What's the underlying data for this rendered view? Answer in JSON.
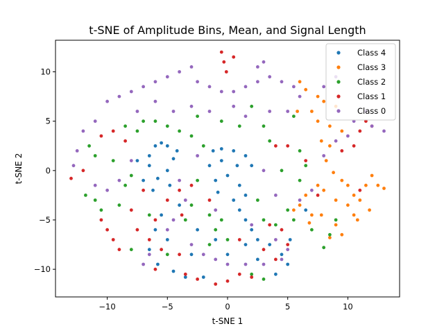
{
  "chart_data": {
    "type": "scatter",
    "title": "t-SNE of Amplitude Bins, Mean, and Signal Length",
    "xlabel": "t-SNE 1",
    "ylabel": "t-SNE 2",
    "xlim": [
      -14.3,
      14.3
    ],
    "ylim": [
      -12.8,
      13.2
    ],
    "xticks": [
      -10,
      -5,
      0,
      5,
      10
    ],
    "yticks": [
      -10,
      -5,
      0,
      5,
      10
    ],
    "xtick_labels": [
      "−10",
      "−5",
      "0",
      "5",
      "10"
    ],
    "ytick_labels": [
      "−10",
      "−5",
      "0",
      "5",
      "10"
    ],
    "grid": false,
    "legend_position": "top-right",
    "series": [
      {
        "name": "Class 4",
        "color": "#1f77b4",
        "points": [
          [
            -6.5,
            1.5
          ],
          [
            -6.0,
            2.5
          ],
          [
            -5.5,
            2.8
          ],
          [
            -5.0,
            2.5
          ],
          [
            -4.5,
            1.2
          ],
          [
            -5.0,
            0.0
          ],
          [
            -5.8,
            -0.8
          ],
          [
            -6.5,
            0.5
          ],
          [
            -4.2,
            2.0
          ],
          [
            -6.2,
            -2.0
          ],
          [
            -4.8,
            -1.5
          ],
          [
            -5.5,
            -4.5
          ],
          [
            -6.0,
            -6.0
          ],
          [
            -5.0,
            -7.0
          ],
          [
            -6.5,
            -8.0
          ],
          [
            -5.8,
            -9.5
          ],
          [
            -4.5,
            -10.2
          ],
          [
            -3.5,
            -10.8
          ],
          [
            -2.0,
            -10.8
          ],
          [
            -1.2,
            2.0
          ],
          [
            -0.5,
            2.2
          ],
          [
            0.5,
            2.0
          ],
          [
            1.5,
            1.5
          ],
          [
            2.0,
            0.5
          ],
          [
            -1.5,
            0.5
          ],
          [
            -1.0,
            -1.0
          ],
          [
            0.0,
            -0.5
          ],
          [
            1.0,
            -1.5
          ],
          [
            1.5,
            -2.5
          ],
          [
            -0.8,
            -2.2
          ],
          [
            0.5,
            -3.0
          ],
          [
            1.0,
            -4.0
          ],
          [
            1.5,
            -5.0
          ],
          [
            2.0,
            -6.0
          ],
          [
            2.5,
            -7.0
          ],
          [
            1.5,
            -7.5
          ],
          [
            -0.5,
            1.0
          ],
          [
            0.8,
            0.5
          ],
          [
            3.5,
            -7.5
          ],
          [
            4.5,
            -8.5
          ],
          [
            5.0,
            -9.5
          ],
          [
            5.2,
            -7.0
          ],
          [
            4.0,
            -10.5
          ],
          [
            -7.5,
            1.0
          ],
          [
            -7.0,
            -1.0
          ],
          [
            -2.5,
            -6.0
          ],
          [
            -3.0,
            -8.5
          ],
          [
            -1.0,
            -7.0
          ],
          [
            0.0,
            -8.5
          ],
          [
            2.5,
            -9.0
          ],
          [
            6.5,
            -4.0
          ],
          [
            -4.0,
            -3.5
          ]
        ]
      },
      {
        "name": "Class 3",
        "color": "#ff7f0e",
        "points": [
          [
            7.0,
            6.0
          ],
          [
            8.0,
            7.0
          ],
          [
            9.0,
            6.5
          ],
          [
            7.5,
            5.0
          ],
          [
            8.5,
            4.5
          ],
          [
            9.5,
            4.0
          ],
          [
            7.8,
            3.0
          ],
          [
            8.2,
            1.0
          ],
          [
            8.8,
            -0.2
          ],
          [
            9.5,
            -1.0
          ],
          [
            8.0,
            -2.0
          ],
          [
            9.0,
            -3.0
          ],
          [
            10.0,
            -3.5
          ],
          [
            10.5,
            -4.5
          ],
          [
            11.0,
            -3.0
          ],
          [
            11.5,
            -1.5
          ],
          [
            12.0,
            -0.5
          ],
          [
            12.5,
            -1.5
          ],
          [
            13.0,
            -1.8
          ],
          [
            7.5,
            -1.5
          ],
          [
            6.5,
            -2.5
          ],
          [
            6.0,
            -3.5
          ],
          [
            5.5,
            -4.0
          ],
          [
            7.0,
            -4.5
          ],
          [
            6.8,
            -5.3
          ],
          [
            7.8,
            -4.5
          ],
          [
            9.5,
            -6.5
          ],
          [
            8.5,
            -6.8
          ],
          [
            7.5,
            7.5
          ],
          [
            6.5,
            8.2
          ],
          [
            6.0,
            9.0
          ],
          [
            10.0,
            -1.5
          ],
          [
            11.8,
            -4.0
          ],
          [
            10.8,
            -5.0
          ],
          [
            9.0,
            -5.5
          ],
          [
            5.8,
            6.0
          ],
          [
            8.5,
            2.5
          ],
          [
            10.5,
            -2.5
          ]
        ]
      },
      {
        "name": "Class 2",
        "color": "#2ca02c",
        "points": [
          [
            -11.5,
            2.5
          ],
          [
            -11.0,
            1.5
          ],
          [
            -11.8,
            -2.5
          ],
          [
            -11.0,
            -3.0
          ],
          [
            -10.5,
            -4.0
          ],
          [
            -9.0,
            -3.5
          ],
          [
            -8.5,
            -1.5
          ],
          [
            -8.0,
            -0.5
          ],
          [
            -7.5,
            4.0
          ],
          [
            -7.0,
            5.0
          ],
          [
            -6.0,
            5.0
          ],
          [
            -5.0,
            4.5
          ],
          [
            -4.0,
            4.0
          ],
          [
            -3.0,
            3.5
          ],
          [
            -2.0,
            2.5
          ],
          [
            -2.5,
            -1.0
          ],
          [
            -3.0,
            -3.5
          ],
          [
            -3.5,
            -5.0
          ],
          [
            -1.5,
            -4.5
          ],
          [
            -0.5,
            -5.0
          ],
          [
            -1.0,
            -6.0
          ],
          [
            0.0,
            -7.0
          ],
          [
            -1.5,
            -7.5
          ],
          [
            3.0,
            4.5
          ],
          [
            3.5,
            3.0
          ],
          [
            2.5,
            -3.0
          ],
          [
            3.0,
            -5.0
          ],
          [
            4.0,
            -5.5
          ],
          [
            5.0,
            -4.0
          ],
          [
            5.5,
            -5.0
          ],
          [
            6.0,
            -1.0
          ],
          [
            6.5,
            0.5
          ],
          [
            6.0,
            2.0
          ],
          [
            7.0,
            -6.0
          ],
          [
            8.0,
            -7.8
          ],
          [
            8.5,
            -6.5
          ],
          [
            9.0,
            -5.0
          ],
          [
            2.0,
            -10.5
          ],
          [
            3.0,
            -11.0
          ],
          [
            -5.0,
            -8.5
          ],
          [
            -8.5,
            4.5
          ],
          [
            -9.5,
            1.0
          ],
          [
            -2.5,
            5.5
          ],
          [
            -0.5,
            5.0
          ],
          [
            1.0,
            4.5
          ],
          [
            2.0,
            6.5
          ],
          [
            -6.5,
            -4.5
          ],
          [
            -8.0,
            -8.0
          ],
          [
            5.5,
            5.5
          ],
          [
            4.5,
            0.0
          ]
        ]
      },
      {
        "name": "Class 1",
        "color": "#d62728",
        "points": [
          [
            -0.5,
            12.0
          ],
          [
            -0.3,
            11.0
          ],
          [
            -0.1,
            10.0
          ],
          [
            0.5,
            11.5
          ],
          [
            -10.5,
            -5.0
          ],
          [
            -10.0,
            -6.0
          ],
          [
            -9.5,
            -7.0
          ],
          [
            -9.0,
            -8.0
          ],
          [
            -10.5,
            3.5
          ],
          [
            -9.5,
            4.0
          ],
          [
            -8.5,
            3.0
          ],
          [
            -3.0,
            -1.5
          ],
          [
            -4.0,
            -2.0
          ],
          [
            -5.0,
            -3.0
          ],
          [
            -6.0,
            -5.0
          ],
          [
            -6.5,
            -7.0
          ],
          [
            -5.5,
            -8.0
          ],
          [
            -4.0,
            -8.5
          ],
          [
            -3.5,
            -10.5
          ],
          [
            -2.5,
            -11.0
          ],
          [
            -1.0,
            -11.5
          ],
          [
            0.0,
            -11.2
          ],
          [
            1.0,
            -10.5
          ],
          [
            2.0,
            -10.8
          ],
          [
            3.5,
            -5.5
          ],
          [
            4.5,
            -6.0
          ],
          [
            5.0,
            -7.5
          ],
          [
            4.0,
            -9.0
          ],
          [
            3.0,
            -8.0
          ],
          [
            4.0,
            2.5
          ],
          [
            5.0,
            2.5
          ],
          [
            9.5,
            2.0
          ],
          [
            10.5,
            2.5
          ],
          [
            11.0,
            4.0
          ],
          [
            11.5,
            5.0
          ],
          [
            12.0,
            4.5
          ],
          [
            11.0,
            -2.0
          ],
          [
            6.5,
            1.0
          ],
          [
            -12.0,
            0.0
          ],
          [
            -13.0,
            -0.8
          ],
          [
            -7.0,
            -2.0
          ],
          [
            -7.5,
            -6.0
          ],
          [
            -6.0,
            -10.0
          ],
          [
            1.0,
            -7.0
          ],
          [
            -1.5,
            -3.0
          ],
          [
            7.5,
            -2.5
          ],
          [
            -3.8,
            -4.5
          ],
          [
            -8.0,
            -4.0
          ]
        ]
      },
      {
        "name": "Class 0",
        "color": "#9467bd",
        "points": [
          [
            -10.0,
            7.0
          ],
          [
            -9.0,
            7.5
          ],
          [
            -8.0,
            8.0
          ],
          [
            -7.0,
            8.5
          ],
          [
            -6.0,
            9.0
          ],
          [
            -5.0,
            9.5
          ],
          [
            -4.0,
            10.0
          ],
          [
            -3.0,
            10.5
          ],
          [
            -2.5,
            9.0
          ],
          [
            -1.5,
            8.5
          ],
          [
            -0.5,
            8.0
          ],
          [
            0.5,
            8.0
          ],
          [
            1.5,
            8.5
          ],
          [
            2.5,
            9.0
          ],
          [
            2.5,
            10.5
          ],
          [
            3.0,
            11.0
          ],
          [
            3.5,
            9.5
          ],
          [
            4.5,
            9.0
          ],
          [
            5.5,
            8.5
          ],
          [
            6.0,
            7.5
          ],
          [
            -11.0,
            5.0
          ],
          [
            -12.0,
            4.0
          ],
          [
            -12.5,
            2.0
          ],
          [
            -12.8,
            0.5
          ],
          [
            -11.0,
            -1.5
          ],
          [
            -10.0,
            -2.0
          ],
          [
            -9.0,
            -1.0
          ],
          [
            -8.0,
            1.0
          ],
          [
            -7.5,
            6.0
          ],
          [
            -6.0,
            7.0
          ],
          [
            -4.5,
            6.0
          ],
          [
            -3.0,
            6.5
          ],
          [
            -1.5,
            6.0
          ],
          [
            0.5,
            6.5
          ],
          [
            1.5,
            5.5
          ],
          [
            3.5,
            6.0
          ],
          [
            5.0,
            6.0
          ],
          [
            -7.0,
            -9.5
          ],
          [
            -6.5,
            -8.5
          ],
          [
            -5.0,
            -6.0
          ],
          [
            -3.0,
            -7.5
          ],
          [
            -2.0,
            -8.5
          ],
          [
            -1.0,
            -9.0
          ],
          [
            0.0,
            -9.5
          ],
          [
            1.5,
            -9.5
          ],
          [
            3.0,
            -9.5
          ],
          [
            4.5,
            -9.0
          ],
          [
            5.0,
            -8.0
          ],
          [
            4.0,
            -7.0
          ],
          [
            2.0,
            -5.5
          ],
          [
            -4.0,
            -1.0
          ],
          [
            -2.5,
            1.5
          ],
          [
            -3.5,
            -3.0
          ],
          [
            3.0,
            0.0
          ],
          [
            4.0,
            -2.5
          ],
          [
            6.0,
            -3.0
          ],
          [
            7.0,
            -2.0
          ],
          [
            8.0,
            1.5
          ],
          [
            9.0,
            3.0
          ],
          [
            10.0,
            3.5
          ],
          [
            10.5,
            5.0
          ],
          [
            11.5,
            6.0
          ],
          [
            12.0,
            4.5
          ],
          [
            13.0,
            4.0
          ],
          [
            9.0,
            9.5
          ],
          [
            8.0,
            8.5
          ],
          [
            -1.0,
            -4.0
          ],
          [
            -4.5,
            -5.0
          ]
        ]
      }
    ]
  }
}
